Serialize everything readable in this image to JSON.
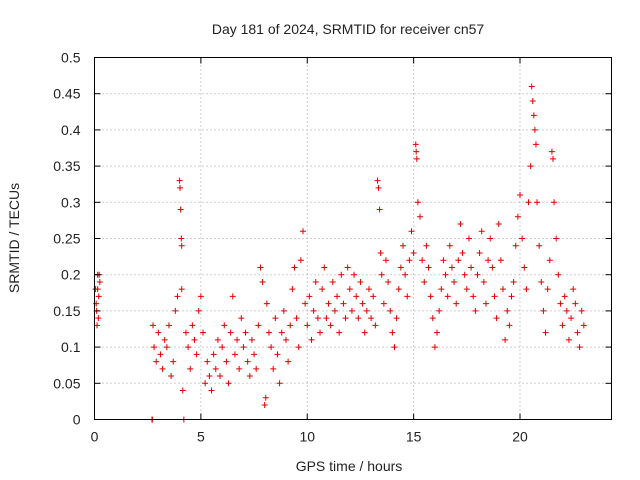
{
  "chart_data": {
    "type": "scatter",
    "title": "Day 181 of 2024, SRMTID for receiver cn57",
    "xlabel": "GPS time / hours",
    "ylabel": "SRMTID / TECUs",
    "xlim": [
      0,
      24.3
    ],
    "ylim": [
      0,
      0.5
    ],
    "x_ticks": [
      0,
      5,
      10,
      15,
      20
    ],
    "x_tick_labels": [
      "0",
      "5",
      "10",
      "15",
      "20"
    ],
    "y_ticks": [
      0,
      0.05,
      0.1,
      0.15,
      0.2,
      0.25,
      0.3,
      0.35,
      0.4,
      0.45,
      0.5
    ],
    "y_tick_labels": [
      "0",
      "0.05",
      "0.1",
      "0.15",
      "0.2",
      "0.25",
      "0.3",
      "0.35",
      "0.4",
      "0.45",
      "0.5"
    ],
    "grid": true,
    "marker": "plus",
    "color": "#e00000",
    "series": [
      {
        "name": "SRMTID",
        "points": [
          [
            0.05,
            0.18
          ],
          [
            0.1,
            0.15
          ],
          [
            0.15,
            0.2
          ],
          [
            0.2,
            0.17
          ],
          [
            0.12,
            0.13
          ],
          [
            0.25,
            0.19
          ],
          [
            0.18,
            0.14
          ],
          [
            0.08,
            0.16
          ],
          [
            0.22,
            0.2
          ],
          [
            0.15,
            0.18
          ],
          [
            2.7,
            0.0
          ],
          [
            2.72,
            0.0
          ],
          [
            2.75,
            0.13
          ],
          [
            2.8,
            0.1
          ],
          [
            2.9,
            0.08
          ],
          [
            3.0,
            0.12
          ],
          [
            3.1,
            0.09
          ],
          [
            3.2,
            0.07
          ],
          [
            3.3,
            0.11
          ],
          [
            3.4,
            0.1
          ],
          [
            3.5,
            0.13
          ],
          [
            3.6,
            0.06
          ],
          [
            3.7,
            0.08
          ],
          [
            3.8,
            0.15
          ],
          [
            3.9,
            0.17
          ],
          [
            4.0,
            0.33
          ],
          [
            4.02,
            0.32
          ],
          [
            4.05,
            0.29
          ],
          [
            4.08,
            0.25
          ],
          [
            4.1,
            0.24
          ],
          [
            4.1,
            0.18
          ],
          [
            4.15,
            0.04
          ],
          [
            4.2,
            0.0
          ],
          [
            4.3,
            0.12
          ],
          [
            4.4,
            0.1
          ],
          [
            4.5,
            0.07
          ],
          [
            4.6,
            0.13
          ],
          [
            4.7,
            0.11
          ],
          [
            4.8,
            0.09
          ],
          [
            4.9,
            0.15
          ],
          [
            5.0,
            0.17
          ],
          [
            5.1,
            0.12
          ],
          [
            5.2,
            0.05
          ],
          [
            5.3,
            0.08
          ],
          [
            5.4,
            0.06
          ],
          [
            5.5,
            0.04
          ],
          [
            5.6,
            0.09
          ],
          [
            5.7,
            0.07
          ],
          [
            5.8,
            0.11
          ],
          [
            5.9,
            0.06
          ],
          [
            6.0,
            0.1
          ],
          [
            6.1,
            0.13
          ],
          [
            6.2,
            0.08
          ],
          [
            6.3,
            0.05
          ],
          [
            6.4,
            0.12
          ],
          [
            6.5,
            0.17
          ],
          [
            6.6,
            0.09
          ],
          [
            6.7,
            0.11
          ],
          [
            6.8,
            0.07
          ],
          [
            6.9,
            0.14
          ],
          [
            7.0,
            0.1
          ],
          [
            7.1,
            0.12
          ],
          [
            7.2,
            0.08
          ],
          [
            7.3,
            0.06
          ],
          [
            7.4,
            0.11
          ],
          [
            7.5,
            0.09
          ],
          [
            7.6,
            0.07
          ],
          [
            7.7,
            0.13
          ],
          [
            7.8,
            0.21
          ],
          [
            7.9,
            0.19
          ],
          [
            8.0,
            0.02
          ],
          [
            8.05,
            0.03
          ],
          [
            8.1,
            0.16
          ],
          [
            8.2,
            0.12
          ],
          [
            8.3,
            0.1
          ],
          [
            8.4,
            0.07
          ],
          [
            8.5,
            0.14
          ],
          [
            8.6,
            0.09
          ],
          [
            8.7,
            0.05
          ],
          [
            8.8,
            0.12
          ],
          [
            8.9,
            0.15
          ],
          [
            9.0,
            0.11
          ],
          [
            9.1,
            0.08
          ],
          [
            9.2,
            0.13
          ],
          [
            9.3,
            0.18
          ],
          [
            9.4,
            0.21
          ],
          [
            9.5,
            0.14
          ],
          [
            9.6,
            0.1
          ],
          [
            9.7,
            0.22
          ],
          [
            9.8,
            0.26
          ],
          [
            9.9,
            0.16
          ],
          [
            10.0,
            0.13
          ],
          [
            10.1,
            0.17
          ],
          [
            10.2,
            0.11
          ],
          [
            10.3,
            0.15
          ],
          [
            10.4,
            0.19
          ],
          [
            10.5,
            0.14
          ],
          [
            10.6,
            0.12
          ],
          [
            10.7,
            0.18
          ],
          [
            10.8,
            0.21
          ],
          [
            10.9,
            0.14
          ],
          [
            11.0,
            0.16
          ],
          [
            11.1,
            0.13
          ],
          [
            11.2,
            0.19
          ],
          [
            11.3,
            0.15
          ],
          [
            11.4,
            0.17
          ],
          [
            11.5,
            0.12
          ],
          [
            11.6,
            0.2
          ],
          [
            11.7,
            0.16
          ],
          [
            11.8,
            0.14
          ],
          [
            11.9,
            0.21
          ],
          [
            12.0,
            0.18
          ],
          [
            12.1,
            0.15
          ],
          [
            12.2,
            0.2
          ],
          [
            12.3,
            0.17
          ],
          [
            12.4,
            0.14
          ],
          [
            12.5,
            0.19
          ],
          [
            12.6,
            0.16
          ],
          [
            12.7,
            0.12
          ],
          [
            12.8,
            0.15
          ],
          [
            12.9,
            0.18
          ],
          [
            13.0,
            0.14
          ],
          [
            13.1,
            0.17
          ],
          [
            13.2,
            0.13
          ],
          [
            13.3,
            0.33
          ],
          [
            13.35,
            0.32
          ],
          [
            13.4,
            0.29
          ],
          [
            13.45,
            0.23
          ],
          [
            13.5,
            0.2
          ],
          [
            13.6,
            0.16
          ],
          [
            13.7,
            0.22
          ],
          [
            13.8,
            0.19
          ],
          [
            13.9,
            0.15
          ],
          [
            14.0,
            0.12
          ],
          [
            14.1,
            0.1
          ],
          [
            14.2,
            0.14
          ],
          [
            14.3,
            0.18
          ],
          [
            14.4,
            0.21
          ],
          [
            14.5,
            0.24
          ],
          [
            14.6,
            0.2
          ],
          [
            14.7,
            0.17
          ],
          [
            14.8,
            0.22
          ],
          [
            14.9,
            0.26
          ],
          [
            15.0,
            0.23
          ],
          [
            15.1,
            0.38
          ],
          [
            15.12,
            0.37
          ],
          [
            15.15,
            0.36
          ],
          [
            15.2,
            0.3
          ],
          [
            15.3,
            0.28
          ],
          [
            15.4,
            0.22
          ],
          [
            15.5,
            0.19
          ],
          [
            15.6,
            0.24
          ],
          [
            15.7,
            0.21
          ],
          [
            15.8,
            0.17
          ],
          [
            15.9,
            0.14
          ],
          [
            16.0,
            0.1
          ],
          [
            16.1,
            0.12
          ],
          [
            16.2,
            0.15
          ],
          [
            16.3,
            0.18
          ],
          [
            16.4,
            0.22
          ],
          [
            16.5,
            0.2
          ],
          [
            16.6,
            0.17
          ],
          [
            16.7,
            0.24
          ],
          [
            16.8,
            0.21
          ],
          [
            16.9,
            0.19
          ],
          [
            17.0,
            0.16
          ],
          [
            17.1,
            0.22
          ],
          [
            17.2,
            0.27
          ],
          [
            17.3,
            0.23
          ],
          [
            17.4,
            0.2
          ],
          [
            17.5,
            0.18
          ],
          [
            17.6,
            0.25
          ],
          [
            17.7,
            0.21
          ],
          [
            17.8,
            0.17
          ],
          [
            17.9,
            0.15
          ],
          [
            18.0,
            0.2
          ],
          [
            18.1,
            0.23
          ],
          [
            18.2,
            0.26
          ],
          [
            18.3,
            0.19
          ],
          [
            18.4,
            0.16
          ],
          [
            18.5,
            0.22
          ],
          [
            18.6,
            0.25
          ],
          [
            18.7,
            0.21
          ],
          [
            18.8,
            0.17
          ],
          [
            18.9,
            0.14
          ],
          [
            19.0,
            0.27
          ],
          [
            19.1,
            0.22
          ],
          [
            19.2,
            0.18
          ],
          [
            19.3,
            0.11
          ],
          [
            19.4,
            0.15
          ],
          [
            19.5,
            0.13
          ],
          [
            19.6,
            0.17
          ],
          [
            19.7,
            0.19
          ],
          [
            19.8,
            0.24
          ],
          [
            19.9,
            0.28
          ],
          [
            20.0,
            0.31
          ],
          [
            20.1,
            0.25
          ],
          [
            20.2,
            0.21
          ],
          [
            20.3,
            0.18
          ],
          [
            20.4,
            0.3
          ],
          [
            20.5,
            0.35
          ],
          [
            20.55,
            0.46
          ],
          [
            20.6,
            0.44
          ],
          [
            20.65,
            0.42
          ],
          [
            20.7,
            0.4
          ],
          [
            20.75,
            0.38
          ],
          [
            20.8,
            0.3
          ],
          [
            20.9,
            0.24
          ],
          [
            21.0,
            0.19
          ],
          [
            21.1,
            0.15
          ],
          [
            21.2,
            0.12
          ],
          [
            21.3,
            0.18
          ],
          [
            21.4,
            0.22
          ],
          [
            21.5,
            0.37
          ],
          [
            21.55,
            0.36
          ],
          [
            21.6,
            0.3
          ],
          [
            21.7,
            0.25
          ],
          [
            21.8,
            0.2
          ],
          [
            21.9,
            0.16
          ],
          [
            22.0,
            0.13
          ],
          [
            22.1,
            0.17
          ],
          [
            22.2,
            0.15
          ],
          [
            22.3,
            0.11
          ],
          [
            22.4,
            0.14
          ],
          [
            22.5,
            0.18
          ],
          [
            22.6,
            0.16
          ],
          [
            22.7,
            0.12
          ],
          [
            22.8,
            0.1
          ],
          [
            22.9,
            0.15
          ],
          [
            23.0,
            0.13
          ]
        ]
      }
    ]
  }
}
